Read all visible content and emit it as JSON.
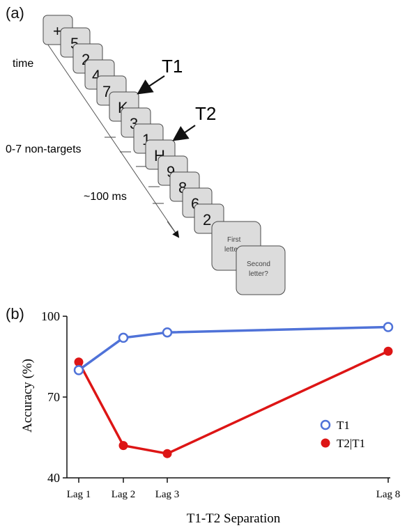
{
  "panel_a": {
    "label": "(a)",
    "time_label": "time",
    "nontargets_label": "0-7 non-targets",
    "duration_label": "~100 ms",
    "t1_label": "T1",
    "t2_label": "T2",
    "cards": [
      "+",
      "5",
      "2",
      "4",
      "7",
      "K",
      "3",
      "1",
      "H",
      "9",
      "8",
      "6",
      "2"
    ],
    "first_prompt": [
      "First",
      "letter?"
    ],
    "second_prompt": [
      "Second",
      "letter?"
    ]
  },
  "panel_b": {
    "label": "(b)"
  },
  "chart_data": {
    "type": "line",
    "title": "",
    "xlabel": "T1-T2 Separation",
    "ylabel": "Accuracy (%)",
    "categories": [
      "Lag 1",
      "Lag 2",
      "Lag 3",
      "Lag 8"
    ],
    "x": [
      1,
      2,
      3,
      8
    ],
    "ylim": [
      40,
      100
    ],
    "yticks": [
      40,
      70,
      100
    ],
    "grid": false,
    "legend_position": "right",
    "series": [
      {
        "name": "T1",
        "values": [
          80,
          92,
          94,
          96
        ],
        "color": "#4f72d8",
        "marker": "hollow-circle"
      },
      {
        "name": "T2|T1",
        "values": [
          83,
          52,
          49,
          87
        ],
        "color": "#dd1515",
        "marker": "filled-circle"
      }
    ]
  }
}
